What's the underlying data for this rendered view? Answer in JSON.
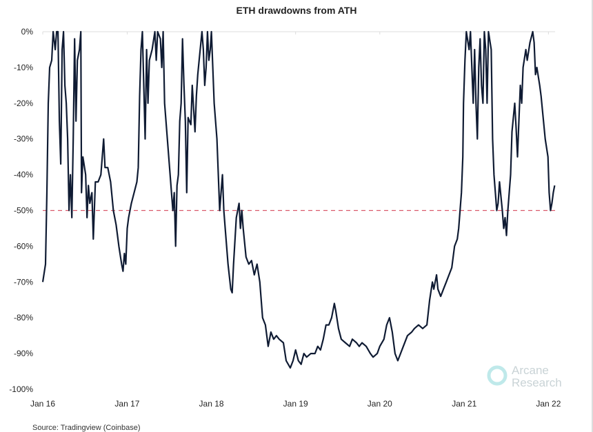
{
  "chart_data": {
    "type": "line",
    "title": "ETH drawdowns from ATH",
    "xlabel": "",
    "ylabel": "",
    "ylim": [
      -100,
      0
    ],
    "xlim": [
      "2016-01-01",
      "2022-02-01"
    ],
    "y_ticks": [
      "0%",
      "-10%",
      "-20%",
      "-30%",
      "-40%",
      "-50%",
      "-60%",
      "-70%",
      "-80%",
      "-90%",
      "-100%"
    ],
    "y_tick_values": [
      0,
      -10,
      -20,
      -30,
      -40,
      -50,
      -60,
      -70,
      -80,
      -90,
      -100
    ],
    "x_ticks": [
      "Jan 16",
      "Jan 17",
      "Jan 18",
      "Jan 19",
      "Jan 20",
      "Jan 21",
      "Jan 22"
    ],
    "x_tick_dates": [
      "2016-01-01",
      "2017-01-01",
      "2018-01-01",
      "2019-01-01",
      "2020-01-01",
      "2021-01-01",
      "2022-01-01"
    ],
    "grid": false,
    "reference_line": {
      "value": -50,
      "style": "dashed",
      "color": "#d9586a"
    },
    "line_color": "#0f1b33",
    "series": [
      {
        "points": [
          [
            "2016-01-01",
            -70
          ],
          [
            "2016-01-13",
            -65
          ],
          [
            "2016-01-19",
            -45
          ],
          [
            "2016-01-25",
            -20
          ],
          [
            "2016-01-31",
            -10
          ],
          [
            "2016-02-09",
            -8
          ],
          [
            "2016-02-15",
            0
          ],
          [
            "2016-02-24",
            -5
          ],
          [
            "2016-03-01",
            0
          ],
          [
            "2016-03-07",
            0
          ],
          [
            "2016-03-13",
            -25
          ],
          [
            "2016-03-19",
            -37
          ],
          [
            "2016-03-25",
            -5
          ],
          [
            "2016-03-31",
            0
          ],
          [
            "2016-04-06",
            -15
          ],
          [
            "2016-04-12",
            -20
          ],
          [
            "2016-04-18",
            -30
          ],
          [
            "2016-04-24",
            -50
          ],
          [
            "2016-04-30",
            -40
          ],
          [
            "2016-05-06",
            -52
          ],
          [
            "2016-05-12",
            -30
          ],
          [
            "2016-05-18",
            -2
          ],
          [
            "2016-05-24",
            -25
          ],
          [
            "2016-05-30",
            -8
          ],
          [
            "2016-06-08",
            -5
          ],
          [
            "2016-06-14",
            0
          ],
          [
            "2016-06-17",
            -45
          ],
          [
            "2016-06-23",
            -35
          ],
          [
            "2016-07-05",
            -40
          ],
          [
            "2016-07-11",
            -52
          ],
          [
            "2016-07-17",
            -43
          ],
          [
            "2016-07-23",
            -48
          ],
          [
            "2016-08-01",
            -45
          ],
          [
            "2016-08-07",
            -58
          ],
          [
            "2016-08-16",
            -42
          ],
          [
            "2016-08-28",
            -42
          ],
          [
            "2016-09-09",
            -40
          ],
          [
            "2016-09-21",
            -30
          ],
          [
            "2016-09-27",
            -38
          ],
          [
            "2016-10-09",
            -38
          ],
          [
            "2016-10-21",
            -42
          ],
          [
            "2016-11-02",
            -50
          ],
          [
            "2016-11-14",
            -54
          ],
          [
            "2016-11-26",
            -60
          ],
          [
            "2016-12-08",
            -65
          ],
          [
            "2016-12-14",
            -67
          ],
          [
            "2016-12-20",
            -62
          ],
          [
            "2016-12-26",
            -65
          ],
          [
            "2017-01-01",
            -55
          ],
          [
            "2017-01-07",
            -52
          ],
          [
            "2017-01-13",
            -50
          ],
          [
            "2017-01-19",
            -48
          ],
          [
            "2017-01-31",
            -45
          ],
          [
            "2017-02-12",
            -42
          ],
          [
            "2017-02-18",
            -38
          ],
          [
            "2017-02-24",
            -18
          ],
          [
            "2017-03-02",
            -5
          ],
          [
            "2017-03-08",
            0
          ],
          [
            "2017-03-14",
            -15
          ],
          [
            "2017-03-20",
            -30
          ],
          [
            "2017-03-26",
            -5
          ],
          [
            "2017-04-01",
            -20
          ],
          [
            "2017-04-07",
            -8
          ],
          [
            "2017-04-19",
            -5
          ],
          [
            "2017-05-01",
            0
          ],
          [
            "2017-05-07",
            -8
          ],
          [
            "2017-05-13",
            0
          ],
          [
            "2017-05-25",
            -2
          ],
          [
            "2017-05-31",
            -10
          ],
          [
            "2017-06-06",
            0
          ],
          [
            "2017-06-12",
            -20
          ],
          [
            "2017-06-24",
            -30
          ],
          [
            "2017-07-06",
            -40
          ],
          [
            "2017-07-18",
            -50
          ],
          [
            "2017-07-24",
            -45
          ],
          [
            "2017-07-30",
            -60
          ],
          [
            "2017-08-05",
            -43
          ],
          [
            "2017-08-11",
            -40
          ],
          [
            "2017-08-17",
            -25
          ],
          [
            "2017-08-23",
            -20
          ],
          [
            "2017-08-29",
            -2
          ],
          [
            "2017-09-04",
            -15
          ],
          [
            "2017-09-10",
            -25
          ],
          [
            "2017-09-16",
            -45
          ],
          [
            "2017-09-22",
            -24
          ],
          [
            "2017-10-04",
            -26
          ],
          [
            "2017-10-10",
            -15
          ],
          [
            "2017-10-22",
            -28
          ],
          [
            "2017-10-28",
            -18
          ],
          [
            "2017-11-03",
            -12
          ],
          [
            "2017-11-09",
            -8
          ],
          [
            "2017-11-21",
            0
          ],
          [
            "2017-11-27",
            -5
          ],
          [
            "2017-12-03",
            -15
          ],
          [
            "2017-12-09",
            -10
          ],
          [
            "2017-12-15",
            0
          ],
          [
            "2017-12-21",
            -8
          ],
          [
            "2017-12-27",
            -5
          ],
          [
            "2018-01-01",
            0
          ],
          [
            "2018-01-07",
            -10
          ],
          [
            "2018-01-13",
            -20
          ],
          [
            "2018-01-25",
            -30
          ],
          [
            "2018-01-31",
            -40
          ],
          [
            "2018-02-06",
            -50
          ],
          [
            "2018-02-18",
            -40
          ],
          [
            "2018-02-24",
            -50
          ],
          [
            "2018-03-02",
            -55
          ],
          [
            "2018-03-14",
            -65
          ],
          [
            "2018-03-26",
            -72
          ],
          [
            "2018-04-01",
            -73
          ],
          [
            "2018-04-07",
            -65
          ],
          [
            "2018-04-19",
            -52
          ],
          [
            "2018-04-25",
            -50
          ],
          [
            "2018-05-01",
            -48
          ],
          [
            "2018-05-07",
            -55
          ],
          [
            "2018-05-13",
            -50
          ],
          [
            "2018-05-19",
            -55
          ],
          [
            "2018-05-31",
            -63
          ],
          [
            "2018-06-12",
            -65
          ],
          [
            "2018-06-24",
            -64
          ],
          [
            "2018-07-06",
            -68
          ],
          [
            "2018-07-18",
            -65
          ],
          [
            "2018-07-30",
            -70
          ],
          [
            "2018-08-11",
            -80
          ],
          [
            "2018-08-23",
            -82
          ],
          [
            "2018-09-04",
            -88
          ],
          [
            "2018-09-16",
            -84
          ],
          [
            "2018-09-28",
            -86
          ],
          [
            "2018-10-10",
            -85
          ],
          [
            "2018-10-22",
            -86
          ],
          [
            "2018-11-09",
            -87
          ],
          [
            "2018-11-21",
            -92
          ],
          [
            "2018-12-09",
            -94
          ],
          [
            "2018-12-21",
            -92
          ],
          [
            "2019-01-01",
            -89
          ],
          [
            "2019-01-13",
            -92
          ],
          [
            "2019-01-25",
            -93
          ],
          [
            "2019-02-06",
            -90
          ],
          [
            "2019-02-18",
            -91
          ],
          [
            "2019-03-08",
            -90
          ],
          [
            "2019-03-26",
            -90
          ],
          [
            "2019-04-07",
            -88
          ],
          [
            "2019-04-19",
            -89
          ],
          [
            "2019-05-01",
            -86
          ],
          [
            "2019-05-13",
            -82
          ],
          [
            "2019-05-25",
            -82
          ],
          [
            "2019-06-06",
            -80
          ],
          [
            "2019-06-18",
            -76
          ],
          [
            "2019-06-24",
            -78
          ],
          [
            "2019-07-06",
            -83
          ],
          [
            "2019-07-18",
            -86
          ],
          [
            "2019-08-05",
            -87
          ],
          [
            "2019-08-23",
            -88
          ],
          [
            "2019-09-04",
            -86
          ],
          [
            "2019-09-22",
            -87
          ],
          [
            "2019-10-04",
            -88
          ],
          [
            "2019-10-16",
            -87
          ],
          [
            "2019-11-03",
            -88
          ],
          [
            "2019-11-21",
            -90
          ],
          [
            "2019-12-03",
            -91
          ],
          [
            "2019-12-21",
            -90
          ],
          [
            "2020-01-01",
            -88
          ],
          [
            "2020-01-19",
            -86
          ],
          [
            "2020-01-31",
            -82
          ],
          [
            "2020-02-12",
            -80
          ],
          [
            "2020-02-24",
            -84
          ],
          [
            "2020-03-07",
            -90
          ],
          [
            "2020-03-19",
            -92
          ],
          [
            "2020-03-31",
            -90
          ],
          [
            "2020-04-12",
            -88
          ],
          [
            "2020-04-30",
            -85
          ],
          [
            "2020-05-18",
            -84
          ],
          [
            "2020-05-30",
            -83
          ],
          [
            "2020-06-17",
            -82
          ],
          [
            "2020-07-05",
            -83
          ],
          [
            "2020-07-23",
            -82
          ],
          [
            "2020-08-04",
            -75
          ],
          [
            "2020-08-16",
            -70
          ],
          [
            "2020-08-22",
            -72
          ],
          [
            "2020-09-03",
            -68
          ],
          [
            "2020-09-09",
            -72
          ],
          [
            "2020-09-21",
            -74
          ],
          [
            "2020-10-03",
            -72
          ],
          [
            "2020-10-15",
            -70
          ],
          [
            "2020-10-27",
            -68
          ],
          [
            "2020-11-08",
            -66
          ],
          [
            "2020-11-20",
            -60
          ],
          [
            "2020-12-02",
            -58
          ],
          [
            "2020-12-08",
            -55
          ],
          [
            "2020-12-14",
            -50
          ],
          [
            "2020-12-20",
            -45
          ],
          [
            "2020-12-26",
            -35
          ],
          [
            "2020-12-29",
            -20
          ],
          [
            "2021-01-04",
            -8
          ],
          [
            "2021-01-10",
            0
          ],
          [
            "2021-01-22",
            -5
          ],
          [
            "2021-01-28",
            0
          ],
          [
            "2021-02-03",
            -10
          ],
          [
            "2021-02-09",
            -20
          ],
          [
            "2021-02-15",
            -5
          ],
          [
            "2021-02-21",
            -20
          ],
          [
            "2021-02-27",
            -30
          ],
          [
            "2021-03-05",
            -10
          ],
          [
            "2021-03-11",
            -2
          ],
          [
            "2021-03-17",
            -15
          ],
          [
            "2021-03-23",
            -20
          ],
          [
            "2021-03-29",
            0
          ],
          [
            "2021-04-04",
            -5
          ],
          [
            "2021-04-10",
            -20
          ],
          [
            "2021-04-16",
            0
          ],
          [
            "2021-04-28",
            -5
          ],
          [
            "2021-05-04",
            -30
          ],
          [
            "2021-05-10",
            -40
          ],
          [
            "2021-05-16",
            -45
          ],
          [
            "2021-05-22",
            -50
          ],
          [
            "2021-05-28",
            -48
          ],
          [
            "2021-06-03",
            -42
          ],
          [
            "2021-06-15",
            -50
          ],
          [
            "2021-06-21",
            -55
          ],
          [
            "2021-06-27",
            -52
          ],
          [
            "2021-07-03",
            -57
          ],
          [
            "2021-07-09",
            -50
          ],
          [
            "2021-07-15",
            -45
          ],
          [
            "2021-07-21",
            -40
          ],
          [
            "2021-07-27",
            -28
          ],
          [
            "2021-08-08",
            -20
          ],
          [
            "2021-08-14",
            -27
          ],
          [
            "2021-08-20",
            -35
          ],
          [
            "2021-08-26",
            -25
          ],
          [
            "2021-09-01",
            -15
          ],
          [
            "2021-09-07",
            -20
          ],
          [
            "2021-09-13",
            -10
          ],
          [
            "2021-09-25",
            -5
          ],
          [
            "2021-10-01",
            -8
          ],
          [
            "2021-10-13",
            -3
          ],
          [
            "2021-10-25",
            0
          ],
          [
            "2021-10-31",
            -3
          ],
          [
            "2021-11-06",
            -12
          ],
          [
            "2021-11-12",
            -10
          ],
          [
            "2021-11-24",
            -15
          ],
          [
            "2021-11-30",
            -18
          ],
          [
            "2021-12-06",
            -22
          ],
          [
            "2021-12-18",
            -30
          ],
          [
            "2021-12-30",
            -35
          ],
          [
            "2022-01-04",
            -45
          ],
          [
            "2022-01-10",
            -50
          ],
          [
            "2022-01-16",
            -48
          ],
          [
            "2022-01-22",
            -45
          ],
          [
            "2022-01-28",
            -43
          ]
        ]
      }
    ]
  },
  "source": "Source: Tradingview (Coinbase)",
  "logo": {
    "line1": "Arcane",
    "line2": "Research",
    "color": "#bfe9ea"
  }
}
